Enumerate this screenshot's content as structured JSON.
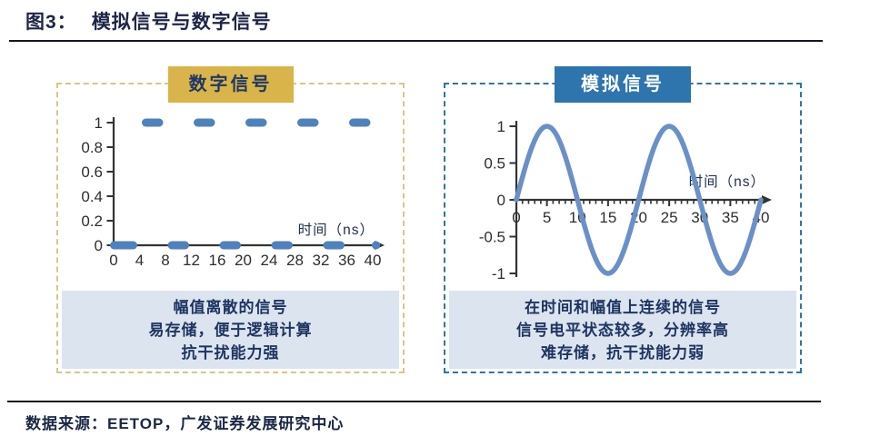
{
  "header": {
    "title_prefix": "图3：",
    "title_text": "模拟信号与数字信号"
  },
  "footer": {
    "source": "数据来源：EETOP，广发证券发展研究中心"
  },
  "digital_panel": {
    "badge": "数字信号",
    "desc": [
      "幅值离散的信号",
      "易存储，便于逻辑计算",
      "抗干扰能力强"
    ]
  },
  "analog_panel": {
    "badge": "模拟信号",
    "desc": [
      "在时间和幅值上连续的信号",
      "信号电平状态较多，分辨率高",
      "难存储，抗干扰能力弱"
    ]
  },
  "colors": {
    "navy": "#1e3560",
    "gold_badge": "#d9b44a",
    "blue_badge": "#2e74ad",
    "khaki_border": "#d5c884",
    "blue_border": "#2e74a8",
    "box_bg": "#dce4f0",
    "dash_blue": "#4f81bd",
    "sine_blue": "#6b90c8",
    "axis": "#333333",
    "tick_text": "#2e2e2e"
  },
  "chart_data": [
    {
      "type": "line",
      "name": "digital-signal",
      "title": "数字信号",
      "xlabel": "时间（ns）",
      "ylabel": "",
      "xlim": [
        0,
        40
      ],
      "ylim": [
        0,
        1
      ],
      "x_ticks": [
        0,
        4,
        8,
        12,
        16,
        20,
        24,
        28,
        32,
        36,
        40
      ],
      "y_ticks": [
        0,
        0.2,
        0.4,
        0.6,
        0.8,
        1
      ],
      "grid": false,
      "series": [
        {
          "name": "level-1-high",
          "level": 1,
          "segments": [
            [
              4,
              8
            ],
            [
              12,
              16
            ],
            [
              20,
              24
            ],
            [
              28,
              32
            ],
            [
              36,
              40
            ]
          ]
        },
        {
          "name": "level-0-low",
          "level": 0,
          "segments": [
            [
              0,
              4
            ],
            [
              8,
              12
            ],
            [
              16,
              20
            ],
            [
              24,
              28
            ],
            [
              32,
              36
            ],
            [
              39.5,
              41.5
            ]
          ]
        }
      ],
      "annotations": [
        "幅值离散的信号",
        "易存储，便于逻辑计算",
        "抗干扰能力强"
      ]
    },
    {
      "type": "line",
      "name": "analog-signal",
      "title": "模拟信号",
      "xlabel": "时间（ns）",
      "ylabel": "",
      "xlim": [
        0,
        40
      ],
      "ylim": [
        -1,
        1
      ],
      "x_ticks": [
        0,
        5,
        10,
        15,
        20,
        25,
        30,
        35,
        40
      ],
      "x_minor_step": 1,
      "y_ticks": [
        -1,
        -0.5,
        0,
        0.5,
        1
      ],
      "grid": false,
      "function": "y = sin(2*pi*t/20)",
      "period": 20,
      "amplitude": 1,
      "annotations": [
        "在时间和幅值上连续的信号",
        "信号电平状态较多，分辨率高",
        "难存储，抗干扰能力弱"
      ]
    }
  ]
}
